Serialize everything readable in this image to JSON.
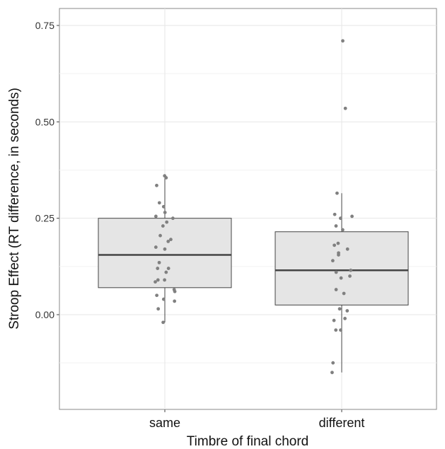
{
  "chart_data": {
    "type": "boxplot",
    "xlabel": "Timbre of final chord",
    "ylabel": "Stroop Effect (RT difference, in seconds)",
    "ylim": [
      -0.25,
      0.8
    ],
    "y_ticks": [
      0.0,
      0.25,
      0.5,
      0.75
    ],
    "y_tick_labels": [
      "0.00",
      "0.25",
      "0.50",
      "0.75"
    ],
    "grid": true,
    "categories": [
      "same",
      "different"
    ],
    "boxes": [
      {
        "category": "same",
        "lower_whisker": -0.02,
        "q1": 0.07,
        "median": 0.155,
        "q3": 0.25,
        "upper_whisker": 0.36,
        "points": [
          0.36,
          0.355,
          0.335,
          0.29,
          0.28,
          0.265,
          0.255,
          0.25,
          0.24,
          0.23,
          0.205,
          0.195,
          0.19,
          0.175,
          0.17,
          0.135,
          0.12,
          0.12,
          0.11,
          0.09,
          0.09,
          0.085,
          0.065,
          0.06,
          0.05,
          0.04,
          0.035,
          0.015,
          -0.02
        ]
      },
      {
        "category": "different",
        "lower_whisker": -0.15,
        "q1": 0.025,
        "median": 0.115,
        "q3": 0.215,
        "upper_whisker": 0.315,
        "outliers": [
          0.71,
          0.535
        ],
        "points": [
          0.71,
          0.535,
          0.315,
          0.26,
          0.255,
          0.25,
          0.23,
          0.22,
          0.185,
          0.18,
          0.17,
          0.16,
          0.155,
          0.14,
          0.115,
          0.11,
          0.1,
          0.095,
          0.065,
          0.055,
          0.015,
          0.01,
          -0.01,
          -0.015,
          -0.04,
          -0.04,
          -0.125,
          -0.15
        ]
      }
    ]
  }
}
